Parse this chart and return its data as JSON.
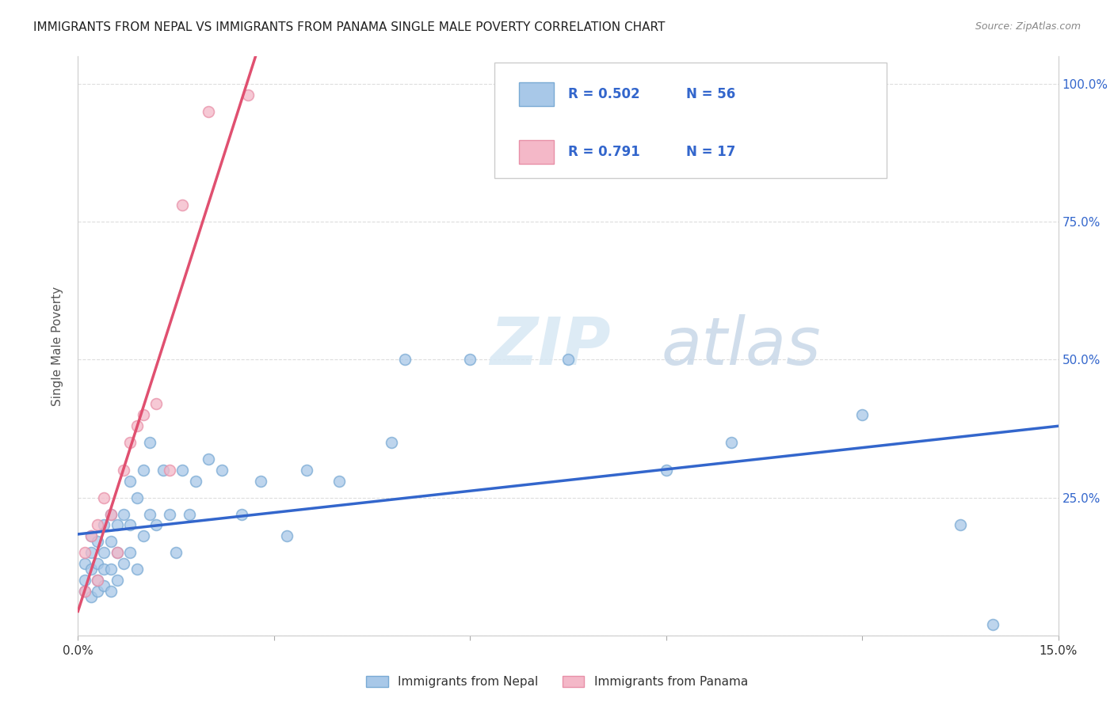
{
  "title": "IMMIGRANTS FROM NEPAL VS IMMIGRANTS FROM PANAMA SINGLE MALE POVERTY CORRELATION CHART",
  "source": "Source: ZipAtlas.com",
  "ylabel": "Single Male Poverty",
  "x_min": 0.0,
  "x_max": 0.15,
  "y_min": 0.0,
  "y_max": 1.05,
  "x_ticks": [
    0.0,
    0.03,
    0.06,
    0.09,
    0.12,
    0.15
  ],
  "x_tick_labels": [
    "0.0%",
    "",
    "",
    "",
    "",
    "15.0%"
  ],
  "y_ticks": [
    0.0,
    0.25,
    0.5,
    0.75,
    1.0
  ],
  "y_tick_labels_right": [
    "",
    "25.0%",
    "50.0%",
    "75.0%",
    "100.0%"
  ],
  "nepal_color": "#a8c8e8",
  "panama_color": "#f4b8c8",
  "nepal_edge_color": "#7aaad4",
  "panama_edge_color": "#e890a8",
  "nepal_line_color": "#3366cc",
  "panama_line_color": "#e05070",
  "nepal_dash_color": "#cccccc",
  "nepal_R": 0.502,
  "nepal_N": 56,
  "panama_R": 0.791,
  "panama_N": 17,
  "watermark_zip": "ZIP",
  "watermark_atlas": "atlas",
  "background_color": "#ffffff",
  "grid_color": "#dddddd",
  "nepal_x": [
    0.001,
    0.001,
    0.001,
    0.002,
    0.002,
    0.002,
    0.002,
    0.003,
    0.003,
    0.003,
    0.003,
    0.004,
    0.004,
    0.004,
    0.004,
    0.005,
    0.005,
    0.005,
    0.005,
    0.006,
    0.006,
    0.006,
    0.007,
    0.007,
    0.008,
    0.008,
    0.008,
    0.009,
    0.009,
    0.01,
    0.01,
    0.011,
    0.011,
    0.012,
    0.013,
    0.014,
    0.015,
    0.016,
    0.017,
    0.018,
    0.02,
    0.022,
    0.025,
    0.028,
    0.032,
    0.035,
    0.04,
    0.048,
    0.05,
    0.06,
    0.075,
    0.09,
    0.1,
    0.12,
    0.135,
    0.14
  ],
  "nepal_y": [
    0.08,
    0.1,
    0.13,
    0.07,
    0.12,
    0.15,
    0.18,
    0.08,
    0.1,
    0.13,
    0.17,
    0.09,
    0.12,
    0.15,
    0.2,
    0.08,
    0.12,
    0.17,
    0.22,
    0.1,
    0.15,
    0.2,
    0.13,
    0.22,
    0.15,
    0.2,
    0.28,
    0.12,
    0.25,
    0.18,
    0.3,
    0.22,
    0.35,
    0.2,
    0.3,
    0.22,
    0.15,
    0.3,
    0.22,
    0.28,
    0.32,
    0.3,
    0.22,
    0.28,
    0.18,
    0.3,
    0.28,
    0.35,
    0.5,
    0.5,
    0.5,
    0.3,
    0.35,
    0.4,
    0.2,
    0.02
  ],
  "panama_x": [
    0.001,
    0.001,
    0.002,
    0.003,
    0.003,
    0.004,
    0.005,
    0.006,
    0.007,
    0.008,
    0.009,
    0.01,
    0.012,
    0.014,
    0.016,
    0.02,
    0.026
  ],
  "panama_y": [
    0.08,
    0.15,
    0.18,
    0.1,
    0.2,
    0.25,
    0.22,
    0.15,
    0.3,
    0.35,
    0.38,
    0.4,
    0.42,
    0.3,
    0.78,
    0.95,
    0.98
  ]
}
